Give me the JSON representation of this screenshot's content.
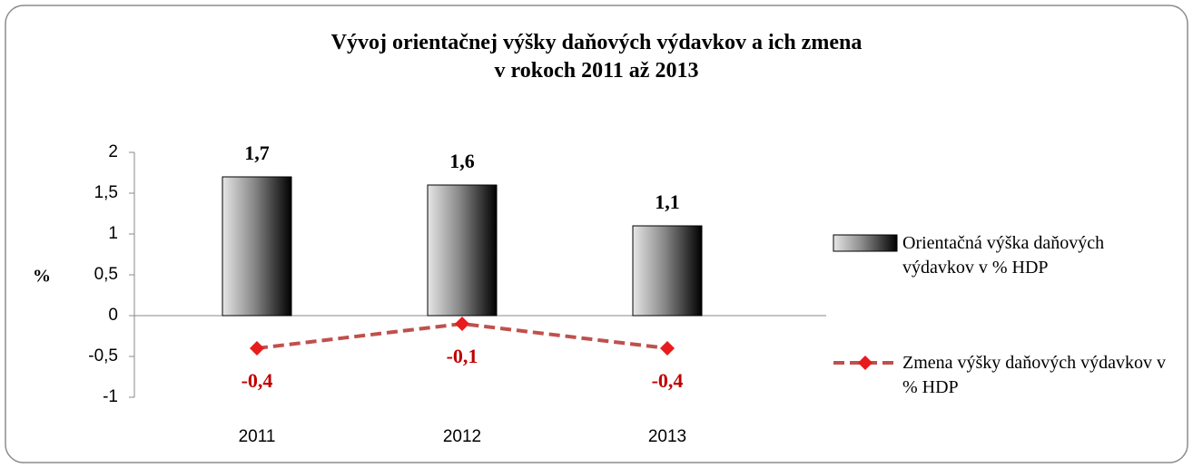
{
  "chart_data": {
    "type": "bar-line",
    "title": "Vývoj orientačnej výšky daňových výdavkov a ich zmena\nv rokoch 2011 až 2013",
    "ylabel": "%",
    "categories": [
      "2011",
      "2012",
      "2013"
    ],
    "series": [
      {
        "name": "Orientačná výška daňových výdavkov v % HDP",
        "type": "bar",
        "color": "#000000",
        "values": [
          1.7,
          1.6,
          1.1
        ],
        "value_labels": [
          "1,7",
          "1,6",
          "1,1"
        ]
      },
      {
        "name": "Zmena výšky daňových výdavkov v % HDP",
        "type": "line",
        "color": "#c0504d",
        "marker_color": "#e81c1c",
        "label_color": "#c00000",
        "values": [
          -0.4,
          -0.1,
          -0.4
        ],
        "value_labels": [
          "-0,4",
          "-0,1",
          "-0,4"
        ]
      }
    ],
    "ylim": [
      -1,
      2
    ],
    "yticks": [
      -1,
      {
        "value": -0.5,
        "label": "-0,5"
      },
      0,
      {
        "value": 0.5,
        "label": "0,5"
      },
      1,
      {
        "value": 1.5,
        "label": "1,5"
      },
      2
    ],
    "legend": "right"
  }
}
